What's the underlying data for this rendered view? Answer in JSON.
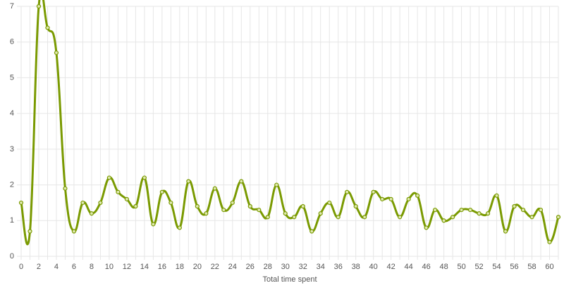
{
  "chart_data": {
    "type": "line",
    "categories": [
      0,
      null,
      2,
      null,
      4,
      null,
      6,
      null,
      8,
      null,
      10,
      null,
      12,
      null,
      14,
      null,
      16,
      null,
      18,
      null,
      20,
      null,
      22,
      null,
      24,
      null,
      26,
      null,
      28,
      null,
      30,
      null,
      32,
      null,
      34,
      null,
      36,
      null,
      38,
      null,
      40,
      null,
      42,
      null,
      44,
      null,
      46,
      null,
      48,
      null,
      50,
      null,
      52,
      null,
      54,
      null,
      56,
      null,
      58,
      null,
      60,
      null
    ],
    "values": [
      1.5,
      0.7,
      7.0,
      6.4,
      5.7,
      1.9,
      0.7,
      1.5,
      1.2,
      1.5,
      2.2,
      1.8,
      1.6,
      1.4,
      2.2,
      0.9,
      1.8,
      1.5,
      0.8,
      2.1,
      1.4,
      1.2,
      1.9,
      1.3,
      1.5,
      2.1,
      1.4,
      1.3,
      1.1,
      2.0,
      1.2,
      1.1,
      1.4,
      0.7,
      1.2,
      1.5,
      1.1,
      1.8,
      1.4,
      1.1,
      1.8,
      1.6,
      1.6,
      1.1,
      1.6,
      1.7,
      0.8,
      1.3,
      1.0,
      1.1,
      1.3,
      1.3,
      1.2,
      1.2,
      1.7,
      0.7,
      1.4,
      1.3,
      1.1,
      1.3,
      0.4,
      1.1
    ],
    "color": "#7a9a01",
    "x_label": "Total time spent",
    "ylim": [
      0,
      7
    ],
    "yticks": [
      0,
      1,
      2,
      3,
      4,
      5,
      6,
      7
    ],
    "grid": true
  }
}
